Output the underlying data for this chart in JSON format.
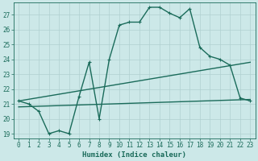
{
  "xlabel": "Humidex (Indice chaleur)",
  "background_color": "#cce8e8",
  "grid_color": "#b0d0d0",
  "line_color": "#1a6b5a",
  "xlim": [
    -0.5,
    23.5
  ],
  "ylim": [
    18.7,
    27.8
  ],
  "yticks": [
    19,
    20,
    21,
    22,
    23,
    24,
    25,
    26,
    27
  ],
  "xticks": [
    0,
    1,
    2,
    3,
    4,
    5,
    6,
    7,
    8,
    9,
    10,
    11,
    12,
    13,
    14,
    15,
    16,
    17,
    18,
    19,
    20,
    21,
    22,
    23
  ],
  "line1_x": [
    0,
    1,
    2,
    3,
    4,
    5,
    6,
    7,
    8,
    9,
    10,
    11,
    12,
    13,
    14,
    15,
    16,
    17,
    18,
    19,
    20,
    21,
    22,
    23
  ],
  "line1_y": [
    21.2,
    21.0,
    20.5,
    19.0,
    19.2,
    19.0,
    21.5,
    23.8,
    20.0,
    24.0,
    26.3,
    26.5,
    26.5,
    27.5,
    27.5,
    27.1,
    26.8,
    27.4,
    24.8,
    24.2,
    24.0,
    23.6,
    21.4,
    21.2
  ],
  "line2_x": [
    0,
    23
  ],
  "line2_y": [
    21.2,
    21.2
  ],
  "line2_slope_start": 21.2,
  "line2_slope_end": 23.8,
  "line3_x": [
    0,
    23
  ],
  "line3_y": [
    21.2,
    21.2
  ],
  "line3_slope_start": 20.8,
  "line3_slope_end": 21.3,
  "trend1_x": [
    0,
    23
  ],
  "trend1_y": [
    21.2,
    23.8
  ],
  "trend2_x": [
    0,
    23
  ],
  "trend2_y": [
    20.8,
    21.3
  ],
  "marker_size": 2.5,
  "line_width": 1.0
}
